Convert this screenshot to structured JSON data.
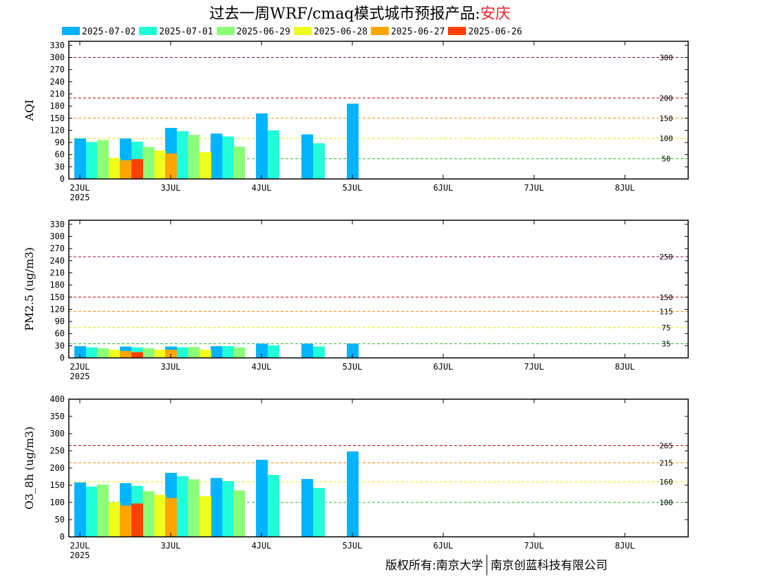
{
  "title": {
    "main": "过去一周WRF/cmaq模式城市预报产品:",
    "city": "安庆"
  },
  "legend": [
    {
      "label": "2025-07-02",
      "color": "#00b4ff"
    },
    {
      "label": "2025-07-01",
      "color": "#20ffd8"
    },
    {
      "label": "2025-06-29",
      "color": "#8cff78"
    },
    {
      "label": "2025-06-28",
      "color": "#eeff1e"
    },
    {
      "label": "2025-06-27",
      "color": "#ffa500"
    },
    {
      "label": "2025-06-26",
      "color": "#ff4000"
    }
  ],
  "copyright": {
    "left": "版权所有:南京大学",
    "right": "南京创蓝科技有限公司"
  },
  "chart_data": [
    {
      "type": "bar",
      "ylabel": "AQI",
      "ylim": [
        0,
        340
      ],
      "yticks": [
        0,
        30,
        60,
        90,
        120,
        150,
        180,
        210,
        240,
        270,
        300,
        330
      ],
      "x_ticks": [
        {
          "label": "2JUL",
          "sub": "2025",
          "day": 0
        },
        {
          "label": "3JUL",
          "sub": "",
          "day": 1
        },
        {
          "label": "4JUL",
          "sub": "",
          "day": 2
        },
        {
          "label": "5JUL",
          "sub": "",
          "day": 3
        },
        {
          "label": "6JUL",
          "sub": "",
          "day": 4
        },
        {
          "label": "7JUL",
          "sub": "",
          "day": 5
        },
        {
          "label": "8JUL",
          "sub": "",
          "day": 6
        }
      ],
      "thresholds": [
        {
          "value": 50,
          "label": "50",
          "color": "#22bb22"
        },
        {
          "value": 100,
          "label": "100",
          "color": "#e8e800"
        },
        {
          "value": 150,
          "label": "150",
          "color": "#ff8800"
        },
        {
          "value": 200,
          "label": "200",
          "color": "#cc0000"
        },
        {
          "value": 300,
          "label": "300",
          "color": "#990044"
        }
      ],
      "series": [
        {
          "name": "2025-07-02",
          "values": [
            {
              "day": 0,
              "value": 100
            },
            {
              "day": 1,
              "value": 100
            },
            {
              "day": 2,
              "value": 126
            },
            {
              "day": 3,
              "value": 112
            },
            {
              "day": 4,
              "value": 162
            },
            {
              "day": 5,
              "value": 110
            },
            {
              "day": 6,
              "value": 186
            }
          ]
        },
        {
          "name": "2025-07-01",
          "values": [
            {
              "day": 0,
              "value": 91
            },
            {
              "day": 1,
              "value": 92
            },
            {
              "day": 2,
              "value": 118
            },
            {
              "day": 3,
              "value": 105
            },
            {
              "day": 4,
              "value": 120
            },
            {
              "day": 5,
              "value": 88
            }
          ]
        },
        {
          "name": "2025-06-29",
          "values": [
            {
              "day": 0,
              "value": 96
            },
            {
              "day": 1,
              "value": 79
            },
            {
              "day": 2,
              "value": 109
            },
            {
              "day": 3,
              "value": 80
            }
          ]
        },
        {
          "name": "2025-06-28",
          "values": [
            {
              "day": 0,
              "value": 52
            },
            {
              "day": 1,
              "value": 70
            },
            {
              "day": 2,
              "value": 66
            }
          ]
        },
        {
          "name": "2025-06-27",
          "values": [
            {
              "day": 0,
              "value": 46
            },
            {
              "day": 1,
              "value": 63
            }
          ]
        },
        {
          "name": "2025-06-26",
          "values": [
            {
              "day": 0,
              "value": 49
            }
          ]
        }
      ]
    },
    {
      "type": "bar",
      "ylabel": "PM2.5 (ug/m3)",
      "ylim": [
        0,
        340
      ],
      "yticks": [
        0,
        30,
        60,
        90,
        120,
        150,
        180,
        210,
        240,
        270,
        300,
        330
      ],
      "x_ticks": [
        {
          "label": "2JUL",
          "sub": "2025",
          "day": 0
        },
        {
          "label": "3JUL",
          "sub": "",
          "day": 1
        },
        {
          "label": "4JUL",
          "sub": "",
          "day": 2
        },
        {
          "label": "5JUL",
          "sub": "",
          "day": 3
        },
        {
          "label": "6JUL",
          "sub": "",
          "day": 4
        },
        {
          "label": "7JUL",
          "sub": "",
          "day": 5
        },
        {
          "label": "8JUL",
          "sub": "",
          "day": 6
        }
      ],
      "thresholds": [
        {
          "value": 35,
          "label": "35",
          "color": "#22bb22"
        },
        {
          "value": 75,
          "label": "75",
          "color": "#e8e800"
        },
        {
          "value": 115,
          "label": "115",
          "color": "#ff8800"
        },
        {
          "value": 150,
          "label": "150",
          "color": "#cc0000"
        },
        {
          "value": 250,
          "label": "250",
          "color": "#990044"
        }
      ],
      "series": [
        {
          "name": "2025-07-02",
          "values": [
            {
              "day": 0,
              "value": 29
            },
            {
              "day": 1,
              "value": 28
            },
            {
              "day": 2,
              "value": 28
            },
            {
              "day": 3,
              "value": 29
            },
            {
              "day": 4,
              "value": 35
            },
            {
              "day": 5,
              "value": 35
            },
            {
              "day": 6,
              "value": 35
            }
          ]
        },
        {
          "name": "2025-07-01",
          "values": [
            {
              "day": 0,
              "value": 26
            },
            {
              "day": 1,
              "value": 26
            },
            {
              "day": 2,
              "value": 26
            },
            {
              "day": 3,
              "value": 29
            },
            {
              "day": 4,
              "value": 31
            },
            {
              "day": 5,
              "value": 28
            }
          ]
        },
        {
          "name": "2025-06-29",
          "values": [
            {
              "day": 0,
              "value": 24
            },
            {
              "day": 1,
              "value": 24
            },
            {
              "day": 2,
              "value": 27
            },
            {
              "day": 3,
              "value": 26
            }
          ]
        },
        {
          "name": "2025-06-28",
          "values": [
            {
              "day": 0,
              "value": 20
            },
            {
              "day": 1,
              "value": 20
            },
            {
              "day": 2,
              "value": 20
            }
          ]
        },
        {
          "name": "2025-06-27",
          "values": [
            {
              "day": 0,
              "value": 17
            },
            {
              "day": 1,
              "value": 20
            }
          ]
        },
        {
          "name": "2025-06-26",
          "values": [
            {
              "day": 0,
              "value": 14
            }
          ]
        }
      ]
    },
    {
      "type": "bar",
      "ylabel": "O3_8h (ug/m3)",
      "ylim": [
        0,
        400
      ],
      "yticks": [
        0,
        50,
        100,
        150,
        200,
        250,
        300,
        350,
        400
      ],
      "x_ticks": [
        {
          "label": "2JUL",
          "sub": "2025",
          "day": 0
        },
        {
          "label": "3JUL",
          "sub": "",
          "day": 1
        },
        {
          "label": "4JUL",
          "sub": "",
          "day": 2
        },
        {
          "label": "5JUL",
          "sub": "",
          "day": 3
        },
        {
          "label": "6JUL",
          "sub": "",
          "day": 4
        },
        {
          "label": "7JUL",
          "sub": "",
          "day": 5
        },
        {
          "label": "8JUL",
          "sub": "",
          "day": 6
        }
      ],
      "thresholds": [
        {
          "value": 100,
          "label": "100",
          "color": "#22bb22"
        },
        {
          "value": 160,
          "label": "160",
          "color": "#e8e800"
        },
        {
          "value": 215,
          "label": "215",
          "color": "#ff8800"
        },
        {
          "value": 265,
          "label": "265",
          "color": "#cc0000"
        }
      ],
      "series": [
        {
          "name": "2025-07-02",
          "values": [
            {
              "day": 0,
              "value": 158
            },
            {
              "day": 1,
              "value": 156
            },
            {
              "day": 2,
              "value": 186
            },
            {
              "day": 3,
              "value": 171
            },
            {
              "day": 4,
              "value": 224
            },
            {
              "day": 5,
              "value": 168
            },
            {
              "day": 6,
              "value": 248
            }
          ]
        },
        {
          "name": "2025-07-01",
          "values": [
            {
              "day": 0,
              "value": 146
            },
            {
              "day": 1,
              "value": 148
            },
            {
              "day": 2,
              "value": 176
            },
            {
              "day": 3,
              "value": 162
            },
            {
              "day": 4,
              "value": 180
            },
            {
              "day": 5,
              "value": 142
            }
          ]
        },
        {
          "name": "2025-06-29",
          "values": [
            {
              "day": 0,
              "value": 152
            },
            {
              "day": 1,
              "value": 133
            },
            {
              "day": 2,
              "value": 167
            },
            {
              "day": 3,
              "value": 135
            }
          ]
        },
        {
          "name": "2025-06-28",
          "values": [
            {
              "day": 0,
              "value": 100
            },
            {
              "day": 1,
              "value": 122
            },
            {
              "day": 2,
              "value": 118
            }
          ]
        },
        {
          "name": "2025-06-27",
          "values": [
            {
              "day": 0,
              "value": 91
            },
            {
              "day": 1,
              "value": 113
            }
          ]
        },
        {
          "name": "2025-06-26",
          "values": [
            {
              "day": 0,
              "value": 97
            }
          ]
        }
      ]
    }
  ]
}
